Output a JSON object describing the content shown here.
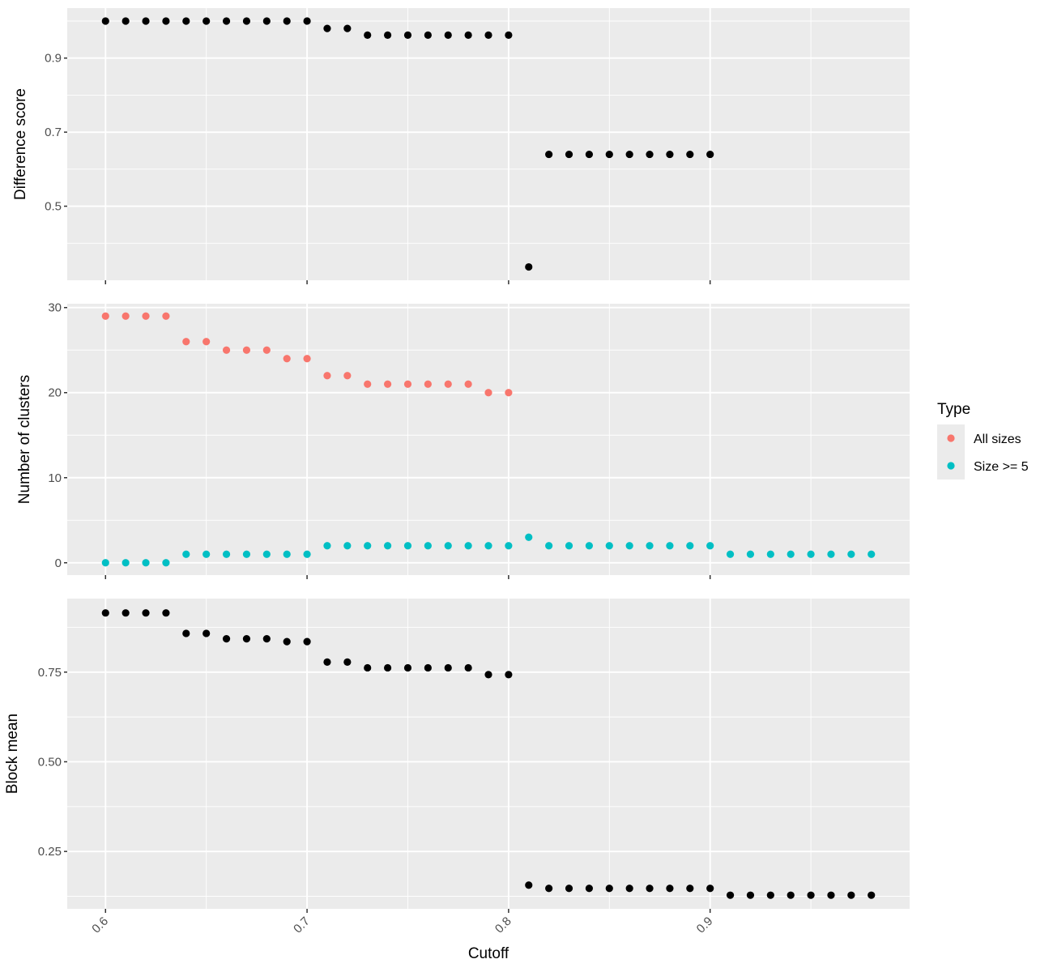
{
  "chart_data": {
    "type": "scatter",
    "xlabel": "Cutoff",
    "x_ticks": [
      "0.6",
      "0.7",
      "0.8",
      "0.9"
    ],
    "xlim": [
      0.581,
      0.999
    ],
    "grid": true,
    "legend": {
      "title": "Type",
      "placement": "right",
      "entries": [
        {
          "label": "All sizes",
          "color": "#f8766d"
        },
        {
          "label": "Size >= 5",
          "color": "#00bfc4"
        }
      ]
    },
    "panels": [
      {
        "ylabel": "Difference score",
        "y_ticks": [
          "0.5",
          "0.7",
          "0.9"
        ],
        "ylim": [
          0.3,
          1.035
        ],
        "series": [
          {
            "color": "#000000",
            "x": [
              0.6,
              0.61,
              0.62,
              0.63,
              0.64,
              0.65,
              0.66,
              0.67,
              0.68,
              0.69,
              0.7,
              0.71,
              0.72,
              0.73,
              0.74,
              0.75,
              0.76,
              0.77,
              0.78,
              0.79,
              0.8,
              0.81,
              0.82,
              0.83,
              0.84,
              0.85,
              0.86,
              0.87,
              0.88,
              0.89,
              0.9
            ],
            "y": [
              1.0,
              1.0,
              1.0,
              1.0,
              1.0,
              1.0,
              1.0,
              1.0,
              1.0,
              1.0,
              1.0,
              0.98,
              0.98,
              0.962,
              0.962,
              0.962,
              0.962,
              0.962,
              0.962,
              0.962,
              0.962,
              0.336,
              0.64,
              0.64,
              0.64,
              0.64,
              0.64,
              0.64,
              0.64,
              0.64,
              0.64
            ]
          }
        ]
      },
      {
        "ylabel": "Number of clusters",
        "y_ticks": [
          "0",
          "10",
          "20",
          "30"
        ],
        "ylim": [
          -1.45,
          30.45
        ],
        "series": [
          {
            "name": "All sizes",
            "color": "#f8766d",
            "x": [
              0.6,
              0.61,
              0.62,
              0.63,
              0.64,
              0.65,
              0.66,
              0.67,
              0.68,
              0.69,
              0.7,
              0.71,
              0.72,
              0.73,
              0.74,
              0.75,
              0.76,
              0.77,
              0.78,
              0.79,
              0.8
            ],
            "y": [
              29,
              29,
              29,
              29,
              26,
              26,
              25,
              25,
              25,
              24,
              24,
              22,
              22,
              21,
              21,
              21,
              21,
              21,
              21,
              20,
              20
            ]
          },
          {
            "name": "Size >= 5",
            "color": "#00bfc4",
            "x": [
              0.6,
              0.61,
              0.62,
              0.63,
              0.64,
              0.65,
              0.66,
              0.67,
              0.68,
              0.69,
              0.7,
              0.71,
              0.72,
              0.73,
              0.74,
              0.75,
              0.76,
              0.77,
              0.78,
              0.79,
              0.8,
              0.81,
              0.82,
              0.83,
              0.84,
              0.85,
              0.86,
              0.87,
              0.88,
              0.89,
              0.9,
              0.91,
              0.92,
              0.93,
              0.94,
              0.95,
              0.96,
              0.97,
              0.98
            ],
            "y": [
              0,
              0,
              0,
              0,
              1,
              1,
              1,
              1,
              1,
              1,
              1,
              2,
              2,
              2,
              2,
              2,
              2,
              2,
              2,
              2,
              2,
              3,
              2,
              2,
              2,
              2,
              2,
              2,
              2,
              2,
              2,
              1,
              1,
              1,
              1,
              1,
              1,
              1,
              1
            ]
          }
        ]
      },
      {
        "ylabel": "Block mean",
        "y_ticks": [
          "0.25",
          "0.50",
          "0.75"
        ],
        "ylim": [
          0.09,
          0.955
        ],
        "series": [
          {
            "color": "#000000",
            "x": [
              0.6,
              0.61,
              0.62,
              0.63,
              0.64,
              0.65,
              0.66,
              0.67,
              0.68,
              0.69,
              0.7,
              0.71,
              0.72,
              0.73,
              0.74,
              0.75,
              0.76,
              0.77,
              0.78,
              0.79,
              0.8,
              0.81,
              0.82,
              0.83,
              0.84,
              0.85,
              0.86,
              0.87,
              0.88,
              0.89,
              0.9,
              0.91,
              0.92,
              0.93,
              0.94,
              0.95,
              0.96,
              0.97,
              0.98
            ],
            "y": [
              0.915,
              0.915,
              0.915,
              0.915,
              0.858,
              0.858,
              0.843,
              0.843,
              0.843,
              0.835,
              0.835,
              0.778,
              0.778,
              0.762,
              0.762,
              0.762,
              0.762,
              0.762,
              0.762,
              0.743,
              0.743,
              0.156,
              0.147,
              0.147,
              0.147,
              0.147,
              0.147,
              0.147,
              0.147,
              0.147,
              0.147,
              0.128,
              0.128,
              0.128,
              0.128,
              0.128,
              0.128,
              0.128,
              0.128
            ]
          }
        ]
      }
    ]
  }
}
